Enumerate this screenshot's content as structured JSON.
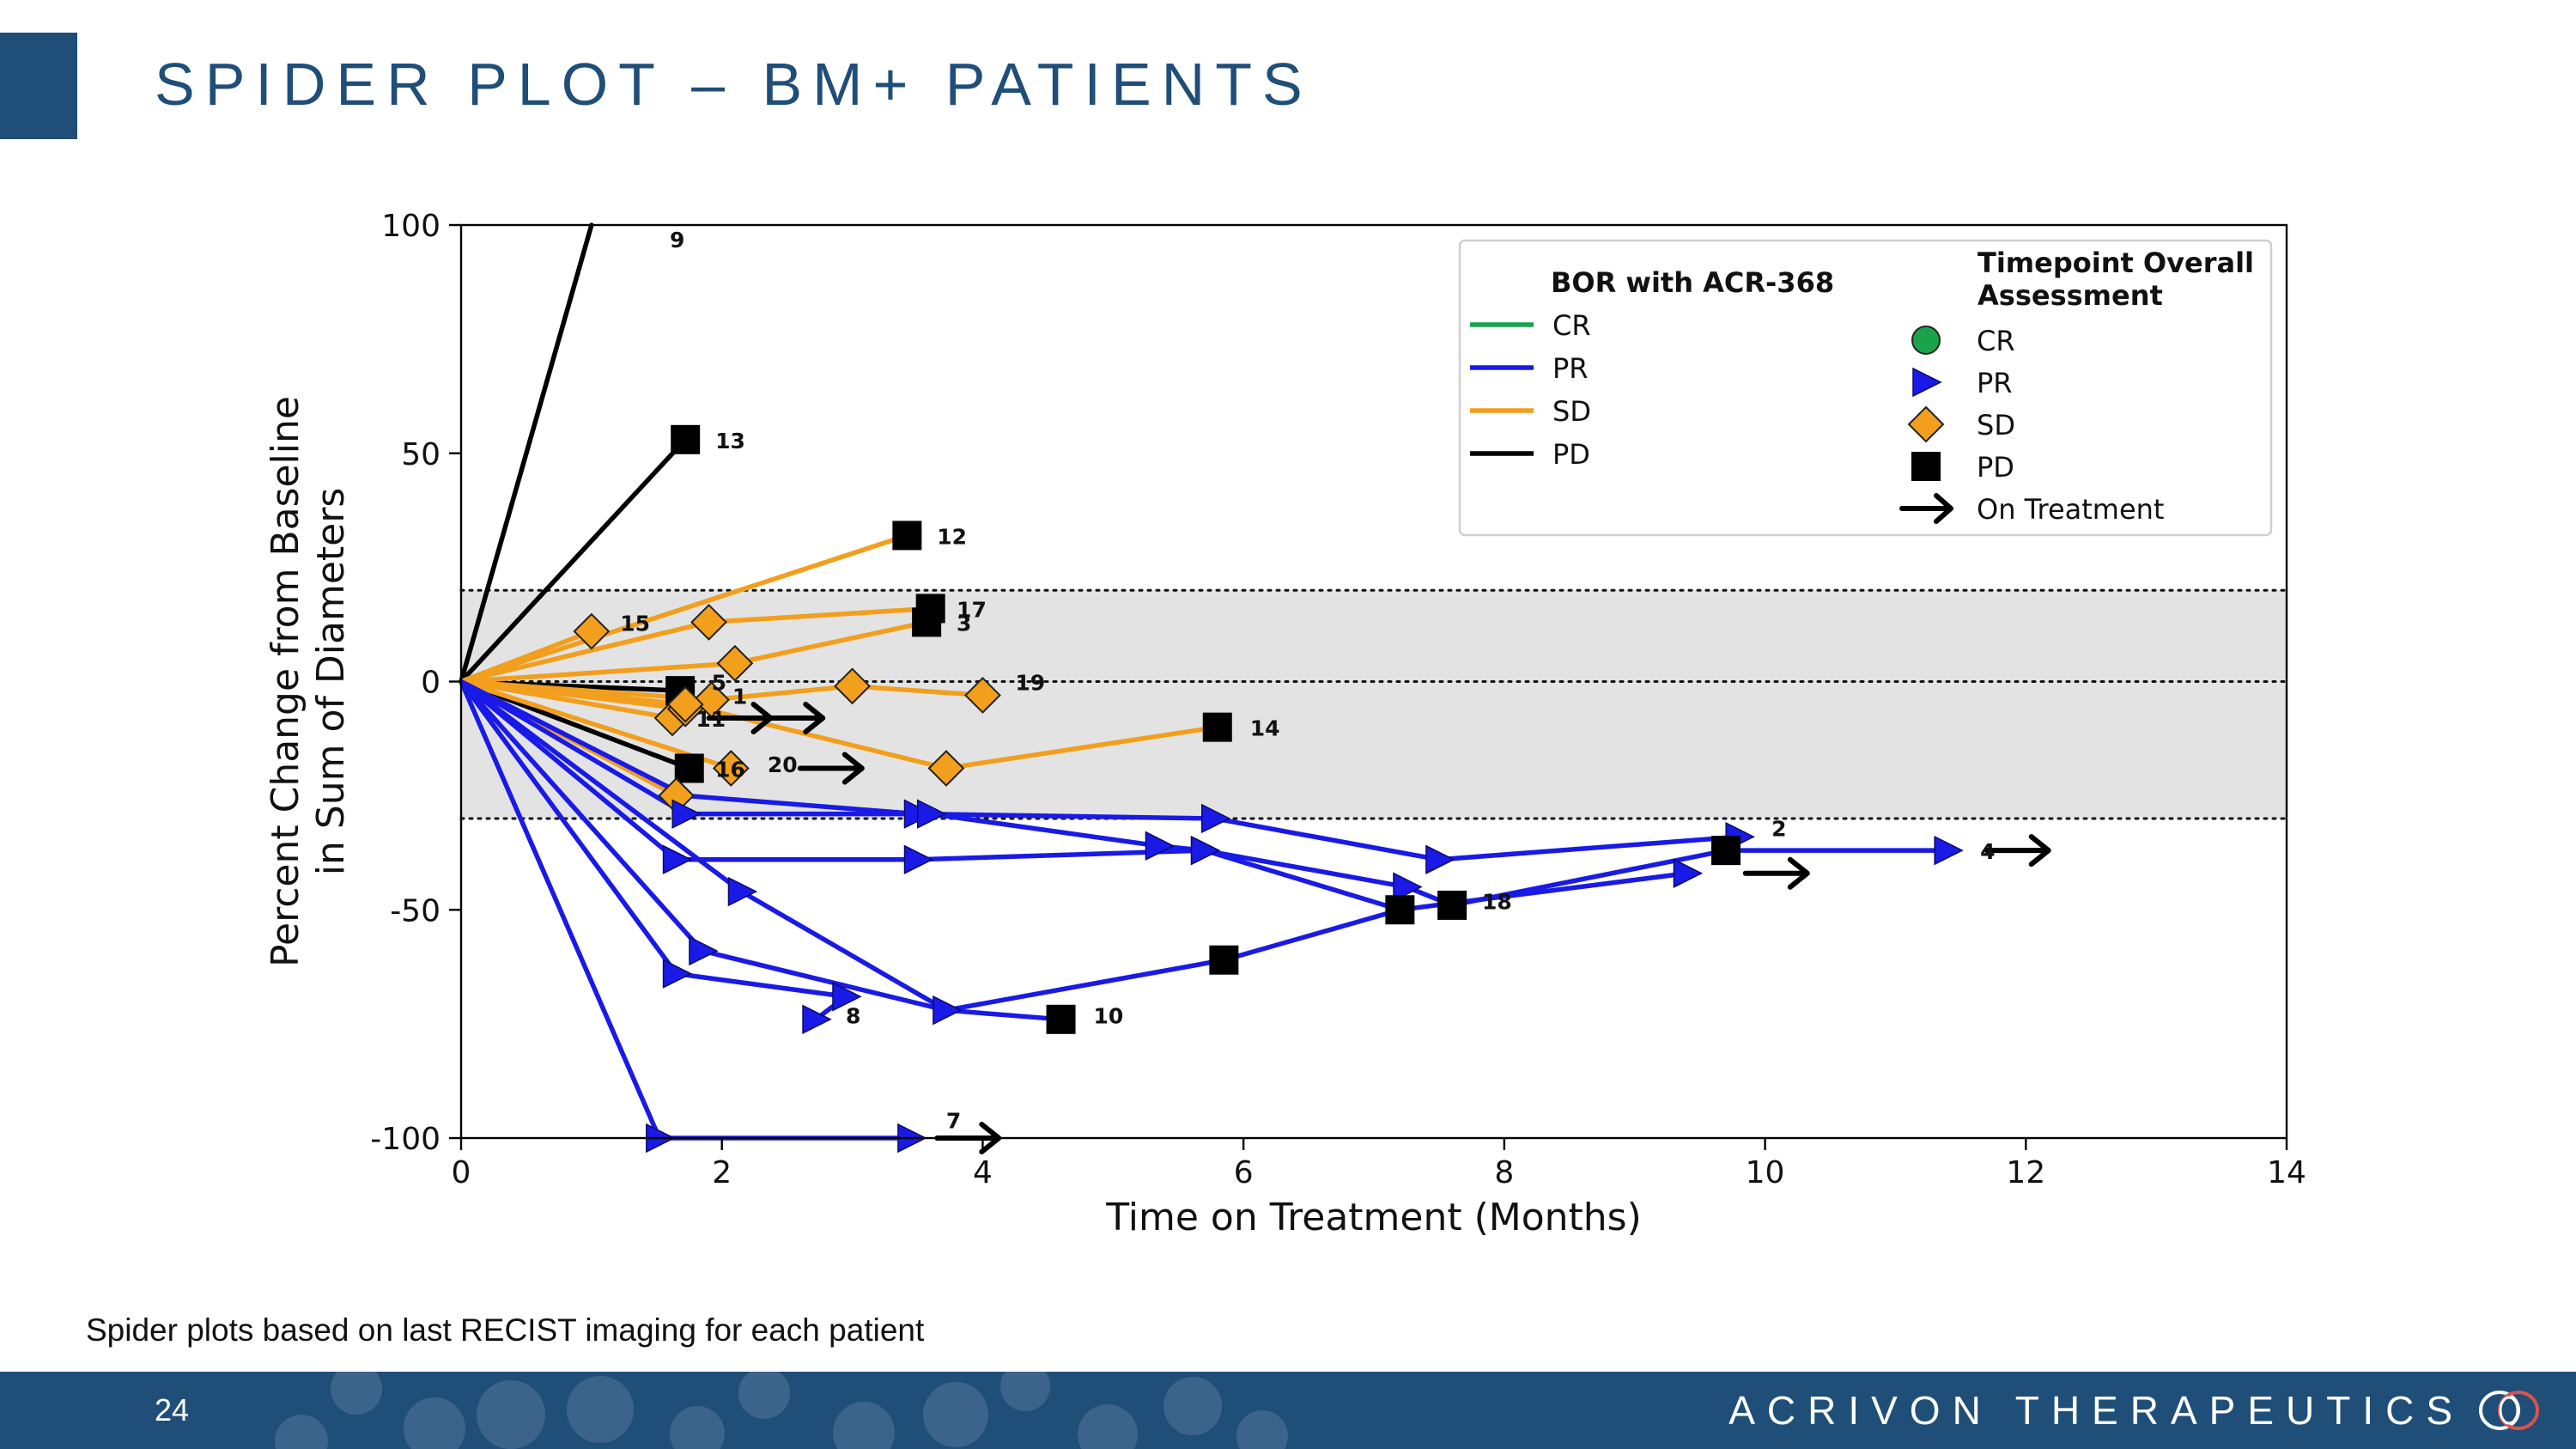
{
  "slide": {
    "title": "SPIDER PLOT – BM+ PATIENTS",
    "footnote": "Spider plots based on last RECIST imaging for each patient",
    "page_number": "24",
    "company": "ACRIVON THERAPEUTICS"
  },
  "colors": {
    "brand": "#1f4e79",
    "CR": "#1aa34a",
    "PR": "#1a1ae6",
    "SD": "#f29f1d",
    "PD": "#000000",
    "band": "#e3e3e3"
  },
  "chart_data": {
    "type": "line",
    "xlabel": "Time on Treatment (Months)",
    "ylabel": [
      "Percent Change from Baseline",
      "in Sum of Diameters"
    ],
    "xlim": [
      0,
      14
    ],
    "ylim": [
      -100,
      100
    ],
    "xticks": [
      0,
      2,
      4,
      6,
      8,
      10,
      12,
      14
    ],
    "yticks": [
      -100,
      -50,
      0,
      50,
      100
    ],
    "reference_band": [
      -30,
      20
    ],
    "reference_lines": [
      20,
      0,
      -30
    ],
    "legend": {
      "bor_title": "BOR with ACR-368",
      "bor_entries": [
        "CR",
        "PR",
        "SD",
        "PD"
      ],
      "tp_title": [
        "Timepoint Overall",
        "Assessment"
      ],
      "tp_entries": [
        {
          "label": "CR",
          "marker": "circle",
          "color": "#1aa34a"
        },
        {
          "label": "PR",
          "marker": "triangle",
          "color": "#1a1ae6"
        },
        {
          "label": "SD",
          "marker": "diamond",
          "color": "#f29f1d"
        },
        {
          "label": "PD",
          "marker": "square",
          "color": "#000000"
        },
        {
          "label": "On Treatment",
          "marker": "arrow",
          "color": "#000000"
        }
      ]
    },
    "series": [
      {
        "id": "9",
        "bor": "PD",
        "points": [
          [
            0,
            0,
            "none"
          ],
          [
            1.0,
            100,
            "none"
          ]
        ],
        "label": [
          1.6,
          97
        ]
      },
      {
        "id": "13",
        "bor": "PD",
        "points": [
          [
            0,
            0,
            "none"
          ],
          [
            1.72,
            53,
            "PD"
          ]
        ],
        "label": [
          1.95,
          53
        ]
      },
      {
        "id": "5",
        "bor": "PD",
        "points": [
          [
            0,
            0,
            "none"
          ],
          [
            1.68,
            -2,
            "PD"
          ]
        ],
        "label": [
          1.92,
          0
        ],
        "arrow": [
          1.9,
          -8
        ]
      },
      {
        "id": "16",
        "bor": "PD",
        "points": [
          [
            0,
            0,
            "none"
          ],
          [
            1.75,
            -19,
            "PD"
          ]
        ],
        "label": [
          1.95,
          -19
        ]
      },
      {
        "id": "12",
        "bor": "SD",
        "points": [
          [
            0,
            0,
            "none"
          ],
          [
            3.42,
            32,
            "PD"
          ]
        ],
        "label": [
          3.65,
          32
        ]
      },
      {
        "id": "17",
        "bor": "SD",
        "points": [
          [
            0,
            0,
            "none"
          ],
          [
            1.9,
            13,
            "SD"
          ],
          [
            3.6,
            16,
            "PD"
          ]
        ],
        "label": [
          3.8,
          16
        ]
      },
      {
        "id": "3",
        "bor": "SD",
        "points": [
          [
            0,
            0,
            "none"
          ],
          [
            2.1,
            4,
            "SD"
          ],
          [
            3.57,
            13,
            "PD"
          ]
        ],
        "label": [
          3.8,
          13
        ]
      },
      {
        "id": "15",
        "bor": "SD",
        "points": [
          [
            0,
            0,
            "none"
          ],
          [
            1.0,
            11,
            "SD"
          ]
        ],
        "label": [
          1.22,
          13
        ]
      },
      {
        "id": "19",
        "bor": "SD",
        "points": [
          [
            0,
            0,
            "none"
          ],
          [
            1.92,
            -4,
            "SD"
          ],
          [
            3.0,
            -1,
            "SD"
          ],
          [
            4.0,
            -3,
            "SD"
          ]
        ],
        "label": [
          4.25,
          0
        ]
      },
      {
        "id": "1",
        "bor": "SD",
        "points": [
          [
            0,
            0,
            "none"
          ],
          [
            1.62,
            -8,
            "SD"
          ]
        ],
        "label": [
          2.08,
          -3
        ]
      },
      {
        "id": "11",
        "bor": "SD",
        "points": [
          [
            0,
            0,
            "none"
          ],
          [
            1.72,
            -6,
            "SD"
          ]
        ],
        "label": [
          1.8,
          -8
        ],
        "arrow": [
          2.3,
          -8
        ]
      },
      {
        "id": "14",
        "bor": "SD",
        "points": [
          [
            0,
            0,
            "none"
          ],
          [
            1.72,
            -5,
            "SD"
          ],
          [
            3.72,
            -19,
            "SD"
          ],
          [
            5.8,
            -10,
            "PD"
          ]
        ],
        "label": [
          6.05,
          -10
        ]
      },
      {
        "id": "20",
        "bor": "SD",
        "points": [
          [
            0,
            0,
            "none"
          ],
          [
            2.07,
            -19,
            "SD"
          ]
        ],
        "label": [
          2.35,
          -18
        ],
        "arrow": [
          2.6,
          -19
        ]
      },
      {
        "id": "6",
        "bor": "SD",
        "points": [
          [
            0,
            0,
            "none"
          ],
          [
            1.65,
            -25,
            "SD"
          ]
        ]
      },
      {
        "id": "2",
        "bor": "PR",
        "points": [
          [
            0,
            0,
            "none"
          ],
          [
            1.72,
            -25,
            "none"
          ],
          [
            3.5,
            -29,
            "PR"
          ],
          [
            5.78,
            -30,
            "PR"
          ],
          [
            7.5,
            -39,
            "PR"
          ],
          [
            9.8,
            -34,
            "PR"
          ]
        ],
        "label": [
          10.05,
          -32
        ]
      },
      {
        "id": "4",
        "bor": "PR",
        "points": [
          [
            0,
            0,
            "none"
          ],
          [
            1.72,
            -29,
            "PR"
          ],
          [
            3.6,
            -29,
            "PR"
          ],
          [
            5.35,
            -36,
            "PR"
          ],
          [
            5.7,
            -37,
            "PR"
          ],
          [
            7.25,
            -45,
            "PR"
          ],
          [
            7.6,
            -49,
            "PD"
          ],
          [
            9.7,
            -37,
            "PD"
          ],
          [
            11.4,
            -37,
            "PR"
          ]
        ],
        "label": [
          11.65,
          -37
        ],
        "arrow": [
          11.7,
          -37
        ]
      },
      {
        "id": "18",
        "bor": "PR",
        "points": [
          [
            0,
            0,
            "none"
          ],
          [
            1.65,
            -39,
            "PR"
          ],
          [
            3.5,
            -39,
            "PR"
          ],
          [
            5.7,
            -37,
            "PR"
          ],
          [
            7.2,
            -50,
            "PD"
          ],
          [
            9.4,
            -42,
            "PR"
          ]
        ],
        "label": [
          7.83,
          -48
        ],
        "arrow": [
          9.85,
          -42
        ]
      },
      {
        "id": "10",
        "bor": "PR",
        "points": [
          [
            0,
            0,
            "none"
          ],
          [
            2.15,
            -46,
            "PR"
          ],
          [
            3.72,
            -72,
            "PR"
          ],
          [
            4.6,
            -74,
            "PD"
          ]
        ],
        "label": [
          4.85,
          -73
        ]
      },
      {
        "id": "21",
        "bor": "PR",
        "points": [
          [
            0,
            0,
            "none"
          ],
          [
            1.85,
            -59,
            "PR"
          ],
          [
            3.72,
            -72,
            "none"
          ],
          [
            5.85,
            -61,
            "PD"
          ],
          [
            7.2,
            -50,
            "none"
          ]
        ]
      },
      {
        "id": "8",
        "bor": "PR",
        "points": [
          [
            0,
            0,
            "none"
          ],
          [
            1.65,
            -64,
            "PR"
          ],
          [
            2.95,
            -69,
            "PR"
          ],
          [
            2.72,
            -74,
            "PR"
          ]
        ],
        "label": [
          2.95,
          -73
        ]
      },
      {
        "id": "7",
        "bor": "PR",
        "points": [
          [
            0,
            0,
            "none"
          ],
          [
            1.52,
            -100,
            "PR"
          ],
          [
            3.45,
            -100,
            "PR"
          ]
        ],
        "label": [
          3.72,
          -96
        ],
        "arrow": [
          3.65,
          -100
        ]
      }
    ]
  }
}
